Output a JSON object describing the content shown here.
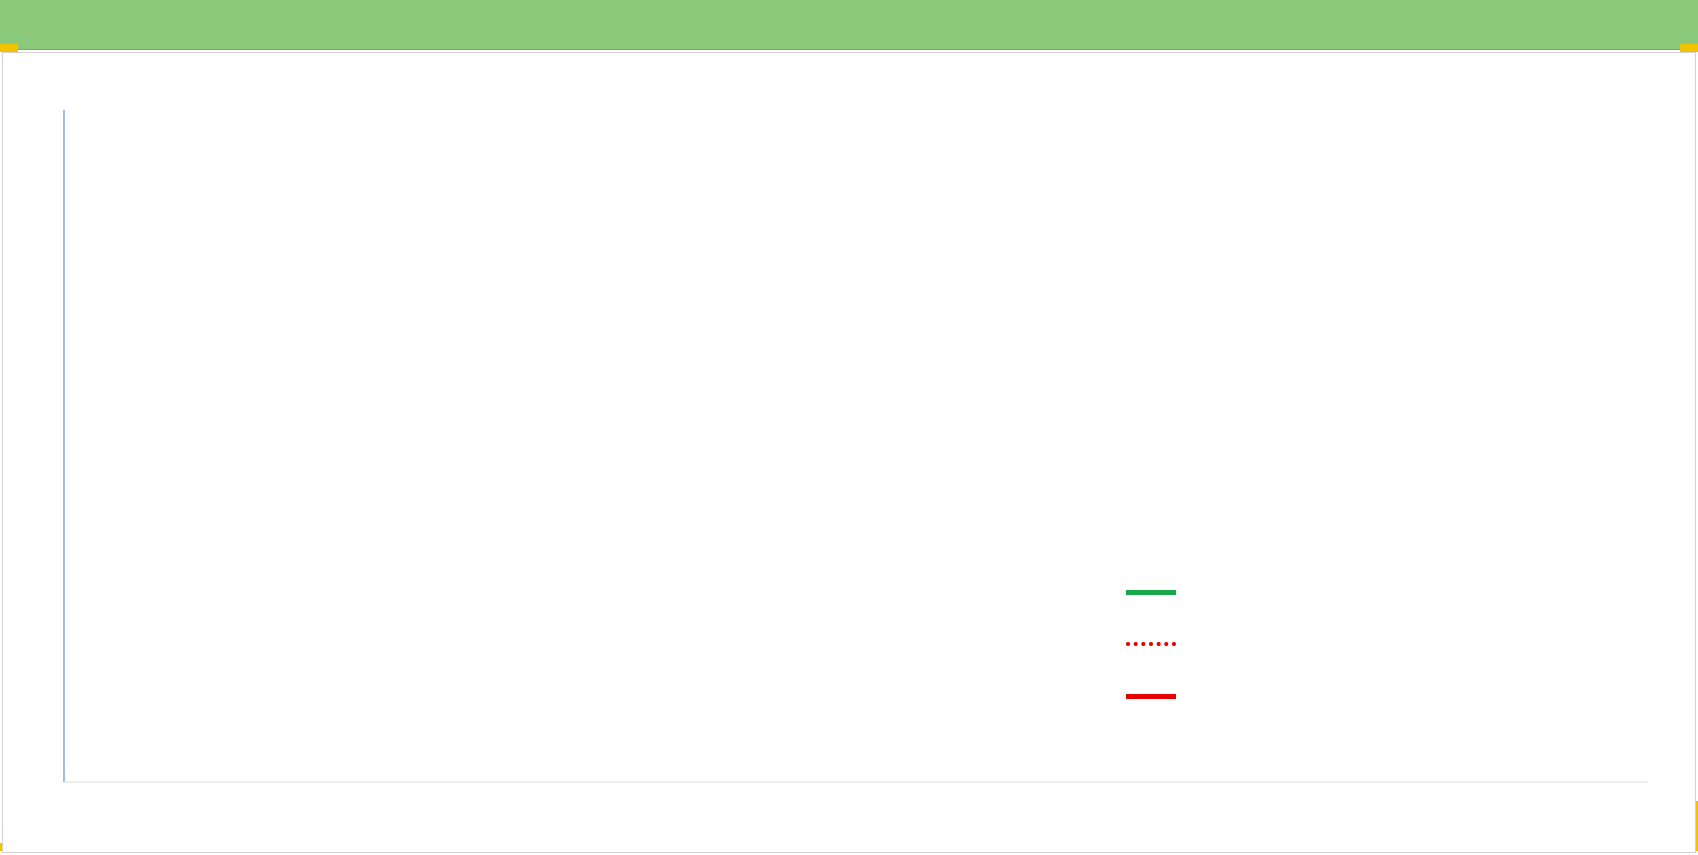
{
  "header": {
    "title": ""
  },
  "chart_data": {
    "type": "line",
    "title": "",
    "subtitle_lines": [],
    "x_tick_labels": [],
    "y_scale": "log",
    "y_tick_labels": [],
    "ylim": [],
    "grid": true,
    "legend_position": "",
    "series": [],
    "colors": {
      "regression": "#18a84a",
      "performance": "#e60000",
      "fvadam": "#e60000",
      "axis": "#4a7ab8",
      "grid": "#d9d9d9"
    }
  }
}
